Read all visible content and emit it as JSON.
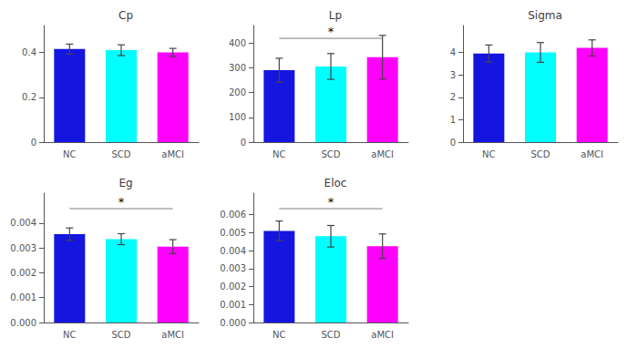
{
  "chart_data": [
    {
      "type": "bar",
      "title": "Cp",
      "categories": [
        "NC",
        "SCD",
        "aMCI"
      ],
      "values": [
        0.415,
        0.41,
        0.4
      ],
      "errors": [
        0.022,
        0.024,
        0.018
      ],
      "colors": [
        "#1515e0",
        "#00ffff",
        "#ff00ff"
      ],
      "ylim": [
        0.0,
        0.52
      ],
      "yticks": [
        0,
        0.2,
        0.4
      ],
      "grid": false
    },
    {
      "type": "bar",
      "title": "Lp",
      "categories": [
        "NC",
        "SCD",
        "aMCI"
      ],
      "values": [
        290,
        305,
        342
      ],
      "errors": [
        48,
        52,
        88
      ],
      "colors": [
        "#1515e0",
        "#00ffff",
        "#ff00ff"
      ],
      "ylim": [
        0,
        470
      ],
      "yticks": [
        0,
        100,
        200,
        300,
        400
      ],
      "annotations": [
        {
          "text": "*",
          "from": "NC",
          "to": "aMCI",
          "y": 418.3
        }
      ],
      "grid": false
    },
    {
      "type": "bar",
      "title": "Sigma",
      "categories": [
        "NC",
        "SCD",
        "aMCI"
      ],
      "values": [
        3.95,
        4.0,
        4.2
      ],
      "errors": [
        0.38,
        0.44,
        0.36
      ],
      "colors": [
        "#1515e0",
        "#00ffff",
        "#ff00ff"
      ],
      "ylim": [
        0,
        5.2
      ],
      "yticks": [
        0,
        1,
        2,
        3,
        4
      ],
      "grid": false
    },
    {
      "type": "bar",
      "title": "Eg",
      "categories": [
        "NC",
        "SCD",
        "aMCI"
      ],
      "values": [
        0.00355,
        0.00335,
        0.00305
      ],
      "errors": [
        0.00025,
        0.00022,
        0.00028
      ],
      "colors": [
        "#1515e0",
        "#00ffff",
        "#ff00ff"
      ],
      "ylim": [
        0.0,
        0.0052
      ],
      "yticks": [
        {
          "value": 0,
          "label": "0.000"
        },
        0.001,
        0.002,
        0.003,
        0.004
      ],
      "annotations": [
        {
          "text": "*",
          "from": "NC",
          "to": "aMCI",
          "y": 0.004576
        }
      ],
      "grid": false
    },
    {
      "type": "bar",
      "title": "Eloc",
      "categories": [
        "NC",
        "SCD",
        "aMCI"
      ],
      "values": [
        0.0051,
        0.0048,
        0.00425
      ],
      "errors": [
        0.00055,
        0.0006,
        0.00068
      ],
      "colors": [
        "#1515e0",
        "#00ffff",
        "#ff00ff"
      ],
      "ylim": [
        0.0,
        0.0072
      ],
      "yticks": [
        {
          "value": 0,
          "label": "0.000"
        },
        0.001,
        0.002,
        0.003,
        0.004,
        0.005,
        0.006
      ],
      "annotations": [
        {
          "text": "*",
          "from": "NC",
          "to": "aMCI",
          "y": 0.006336
        }
      ],
      "grid": false
    }
  ]
}
